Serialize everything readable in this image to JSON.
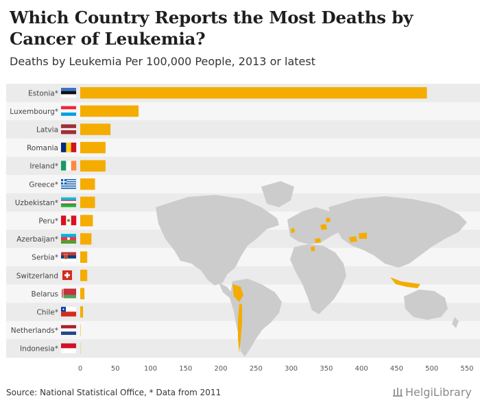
{
  "title": "Which Country Reports the Most Deaths by Cancer of Leukemia?",
  "subtitle": "Deaths by Leukemia Per 100,000 People, 2013 or latest",
  "source": "Source: National Statistical Office, * Data from 2011",
  "logo": {
    "text": "HelgiLibrary",
    "icon": "library-columns-icon"
  },
  "colors": {
    "bar": "#f5ac00",
    "band": "#ebebeb",
    "map_land": "#cccccc",
    "map_highlight": "#f5ac00",
    "tick": "#555555"
  },
  "chart_data": {
    "type": "bar",
    "orientation": "horizontal",
    "title": "Which Country Reports the Most Deaths by Cancer of Leukemia?",
    "subtitle": "Deaths by Leukemia Per 100,000 People, 2013 or latest",
    "xlabel": "",
    "ylabel": "",
    "xlim": [
      0,
      550
    ],
    "xticks": [
      0,
      50,
      100,
      150,
      200,
      250,
      300,
      350,
      400,
      450,
      500,
      550
    ],
    "categories": [
      "Estonia*",
      "Luxembourg*",
      "Latvia",
      "Romania",
      "Ireland*",
      "Greece*",
      "Uzbekistan*",
      "Peru*",
      "Azerbaijan*",
      "Serbia*",
      "Switzerland",
      "Belarus",
      "Chile*",
      "Netherlands*",
      "Indonesia*"
    ],
    "flag_icons": [
      "estonia-flag-icon",
      "luxembourg-flag-icon",
      "latvia-flag-icon",
      "romania-flag-icon",
      "ireland-flag-icon",
      "greece-flag-icon",
      "uzbekistan-flag-icon",
      "peru-flag-icon",
      "azerbaijan-flag-icon",
      "serbia-flag-icon",
      "switzerland-flag-icon",
      "belarus-flag-icon",
      "chile-flag-icon",
      "netherlands-flag-icon",
      "indonesia-flag-icon"
    ],
    "values": [
      493,
      83,
      43,
      36,
      36,
      21,
      21,
      18,
      16,
      10,
      10,
      6,
      4,
      0.5,
      0.3
    ]
  }
}
